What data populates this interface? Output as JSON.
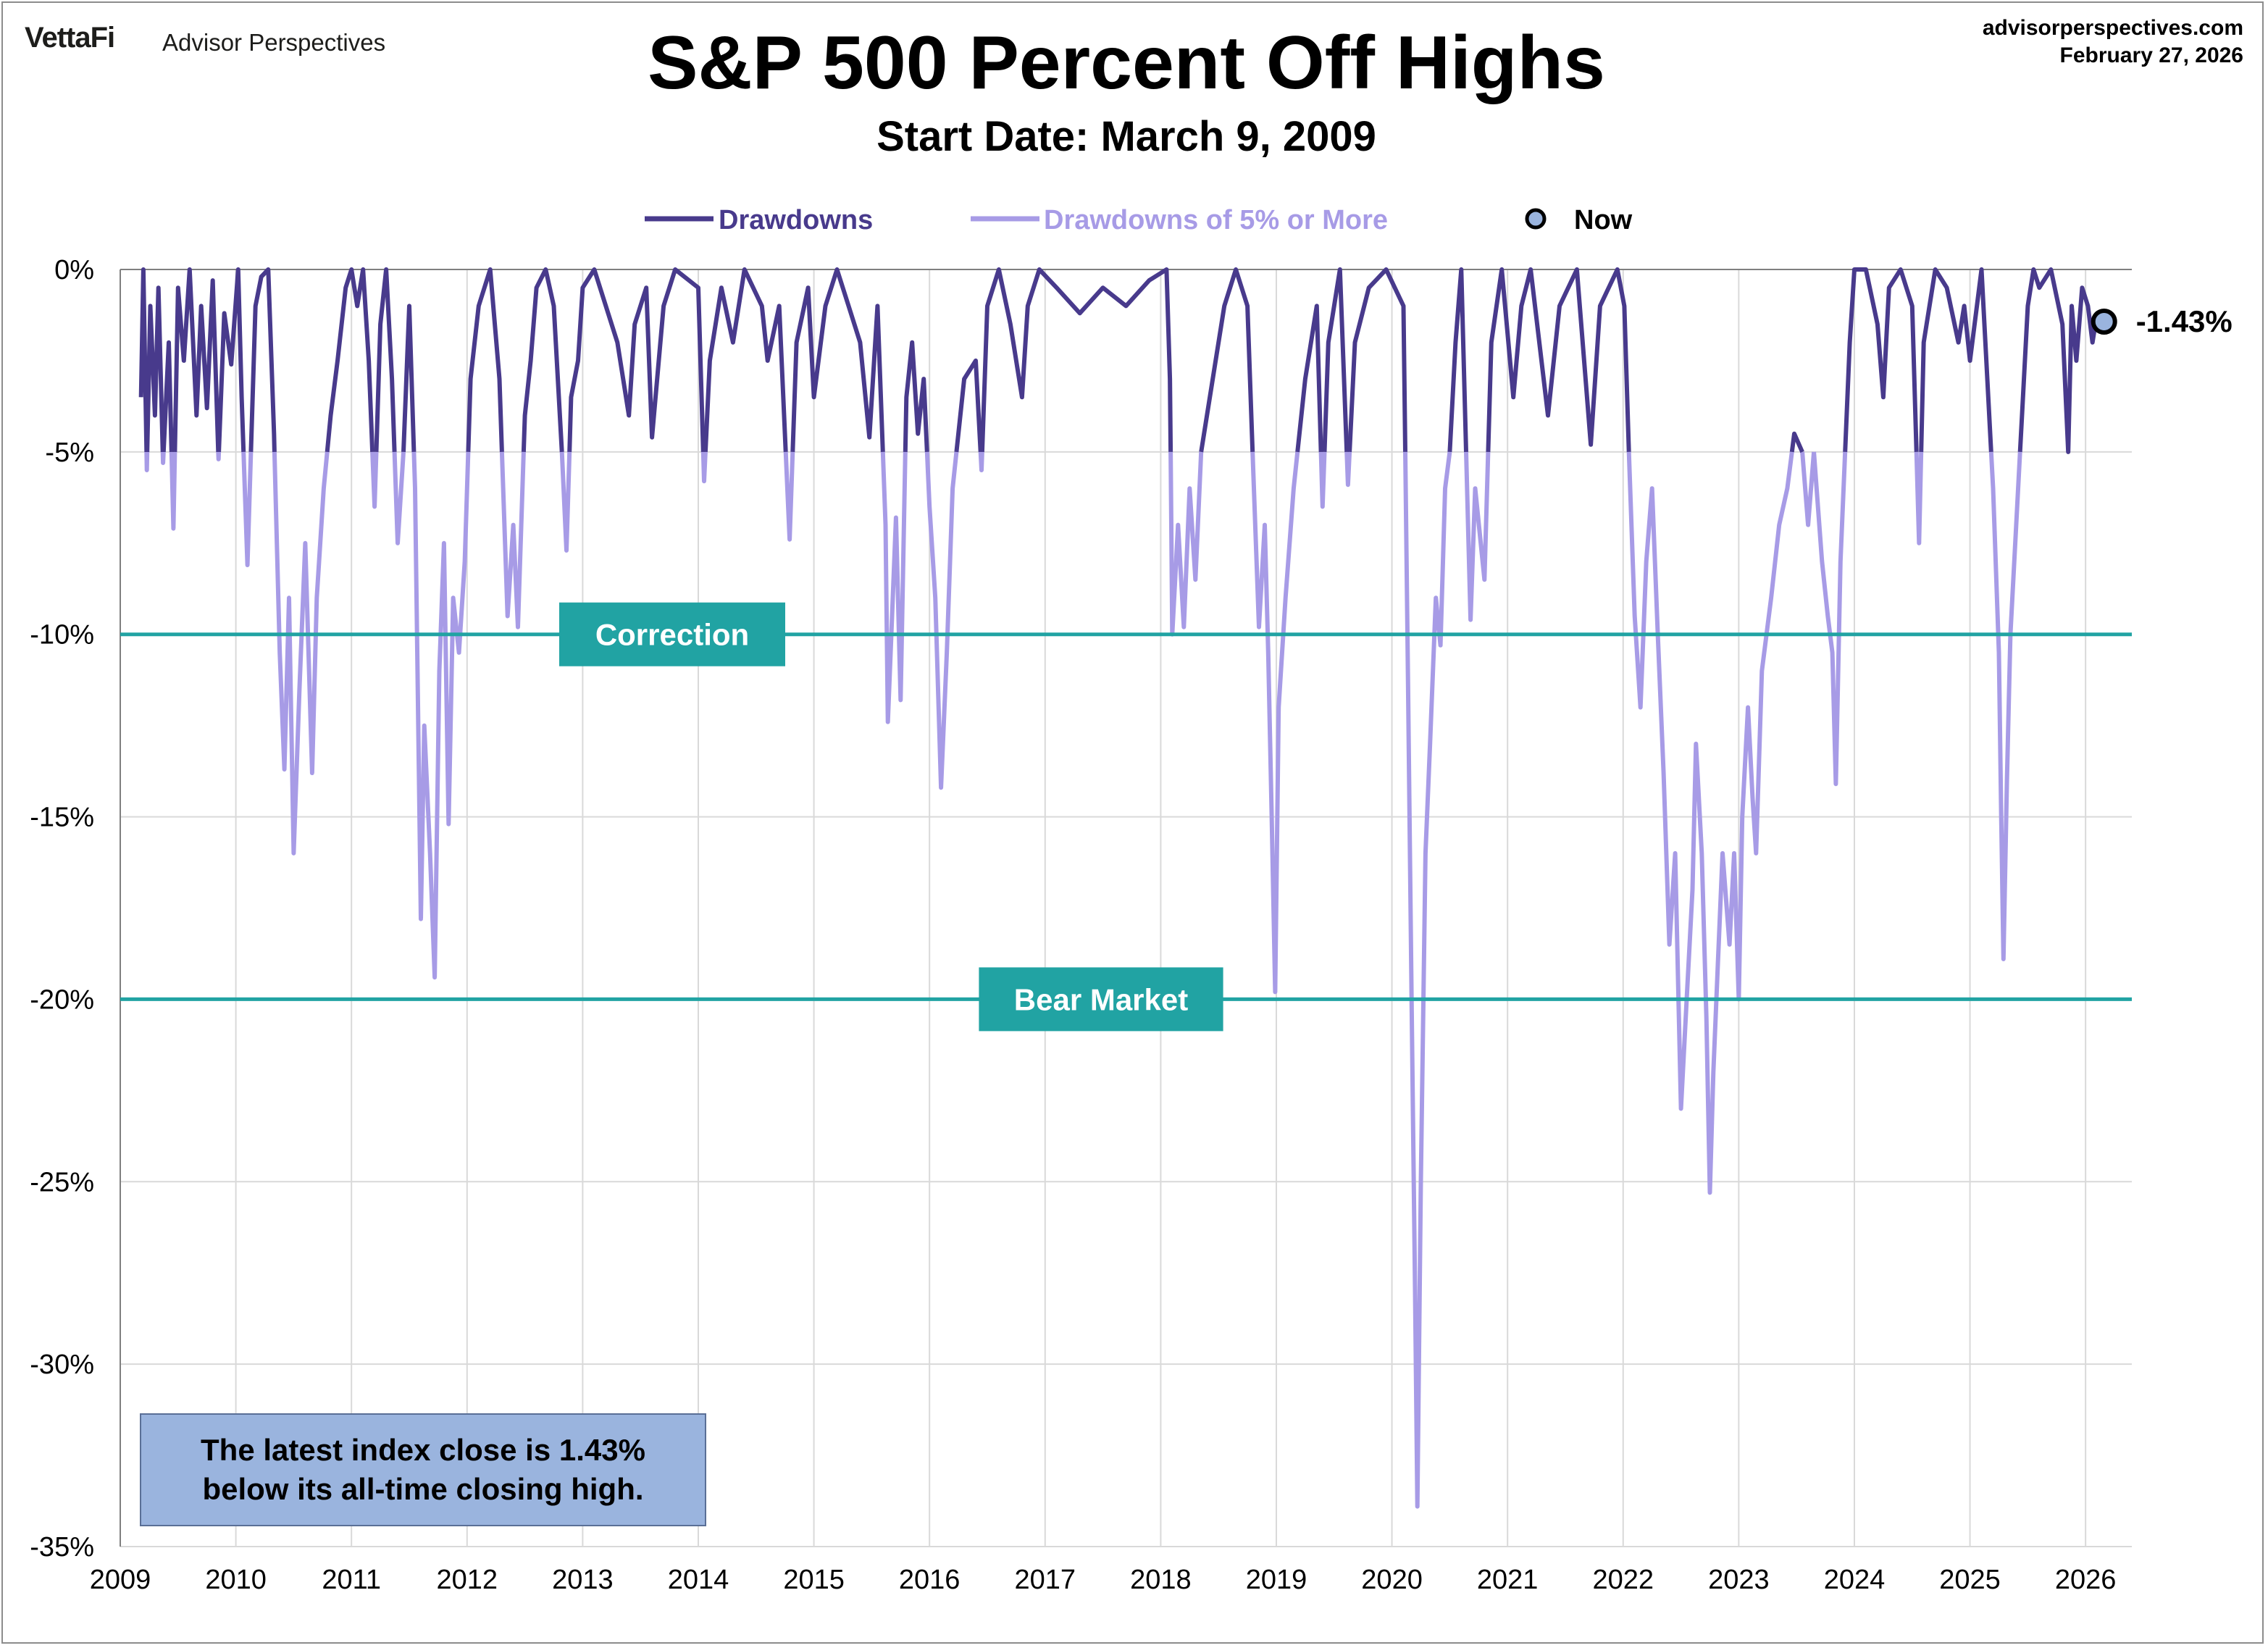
{
  "header": {
    "logo": "VettaFi",
    "logo_sub": "Advisor Perspectives",
    "source_url": "advisorperspectives.com",
    "source_date": "February 27, 2026"
  },
  "note": {
    "line1": "The latest index close is 1.43%",
    "line2": "below its all-time closing high."
  },
  "colors": {
    "drawdown": "#483a8c",
    "drawdown_5pct": "#a79be6",
    "reference": "#21a3a3",
    "grid": "#d9d9d9"
  },
  "chart_data": {
    "type": "line",
    "title": "S&P 500 Percent Off Highs",
    "subtitle": "Start Date: March 9, 2009",
    "xlabel": "",
    "ylabel": "",
    "xlim": [
      2009,
      2026.4
    ],
    "ylim": [
      -35,
      0
    ],
    "grid": true,
    "legend_position": "top",
    "x_ticks": [
      "2009",
      "2010",
      "2011",
      "2012",
      "2013",
      "2014",
      "2015",
      "2016",
      "2017",
      "2018",
      "2019",
      "2020",
      "2021",
      "2022",
      "2023",
      "2024",
      "2025",
      "2026"
    ],
    "y_ticks": [
      "0%",
      "-5%",
      "-10%",
      "-15%",
      "-20%",
      "-25%",
      "-30%",
      "-35%"
    ],
    "legend": [
      {
        "name": "Drawdowns",
        "color": "#483a8c",
        "kind": "line"
      },
      {
        "name": "Drawdowns of 5% or More",
        "color": "#a79be6",
        "kind": "line"
      },
      {
        "name": "Now",
        "color": "#9ab4de",
        "kind": "marker"
      }
    ],
    "reference_lines": [
      {
        "label": "Correction",
        "y": -10
      },
      {
        "label": "Bear Market",
        "y": -20
      }
    ],
    "threshold": -5,
    "series": [
      {
        "name": "Drawdowns",
        "points": [
          [
            2009.18,
            -3.5
          ],
          [
            2009.2,
            0
          ],
          [
            2009.23,
            -5.5
          ],
          [
            2009.26,
            -1
          ],
          [
            2009.3,
            -4
          ],
          [
            2009.33,
            -0.5
          ],
          [
            2009.37,
            -5.3
          ],
          [
            2009.42,
            -2
          ],
          [
            2009.46,
            -7.1
          ],
          [
            2009.5,
            -0.5
          ],
          [
            2009.55,
            -2.5
          ],
          [
            2009.6,
            0
          ],
          [
            2009.66,
            -4
          ],
          [
            2009.7,
            -1
          ],
          [
            2009.75,
            -3.8
          ],
          [
            2009.8,
            -0.3
          ],
          [
            2009.85,
            -5.2
          ],
          [
            2009.9,
            -1.2
          ],
          [
            2009.96,
            -2.6
          ],
          [
            2010.02,
            0
          ],
          [
            2010.05,
            -3.5
          ],
          [
            2010.1,
            -8.1
          ],
          [
            2010.17,
            -1
          ],
          [
            2010.22,
            -0.2
          ],
          [
            2010.28,
            0
          ],
          [
            2010.33,
            -4.5
          ],
          [
            2010.38,
            -10.5
          ],
          [
            2010.42,
            -13.7
          ],
          [
            2010.46,
            -9
          ],
          [
            2010.5,
            -16
          ],
          [
            2010.55,
            -11.5
          ],
          [
            2010.6,
            -7.5
          ],
          [
            2010.66,
            -13.8
          ],
          [
            2010.7,
            -9
          ],
          [
            2010.76,
            -6
          ],
          [
            2010.82,
            -4
          ],
          [
            2010.88,
            -2.5
          ],
          [
            2010.95,
            -0.5
          ],
          [
            2011.0,
            0
          ],
          [
            2011.05,
            -1
          ],
          [
            2011.1,
            0
          ],
          [
            2011.15,
            -2.5
          ],
          [
            2011.2,
            -6.5
          ],
          [
            2011.25,
            -1.5
          ],
          [
            2011.3,
            0
          ],
          [
            2011.35,
            -3
          ],
          [
            2011.4,
            -7.5
          ],
          [
            2011.45,
            -5
          ],
          [
            2011.5,
            -1
          ],
          [
            2011.55,
            -6
          ],
          [
            2011.6,
            -17.8
          ],
          [
            2011.63,
            -12.5
          ],
          [
            2011.68,
            -16
          ],
          [
            2011.72,
            -19.4
          ],
          [
            2011.76,
            -11
          ],
          [
            2011.8,
            -7.5
          ],
          [
            2011.84,
            -15.2
          ],
          [
            2011.88,
            -9
          ],
          [
            2011.93,
            -10.5
          ],
          [
            2011.98,
            -8
          ],
          [
            2012.03,
            -3
          ],
          [
            2012.1,
            -1
          ],
          [
            2012.2,
            0
          ],
          [
            2012.28,
            -3
          ],
          [
            2012.35,
            -9.5
          ],
          [
            2012.4,
            -7
          ],
          [
            2012.44,
            -9.8
          ],
          [
            2012.5,
            -4
          ],
          [
            2012.55,
            -2.5
          ],
          [
            2012.6,
            -0.5
          ],
          [
            2012.68,
            0
          ],
          [
            2012.75,
            -1
          ],
          [
            2012.82,
            -5
          ],
          [
            2012.86,
            -7.7
          ],
          [
            2012.9,
            -3.5
          ],
          [
            2012.96,
            -2.5
          ],
          [
            2013.0,
            -0.5
          ],
          [
            2013.1,
            0
          ],
          [
            2013.3,
            -2
          ],
          [
            2013.4,
            -4
          ],
          [
            2013.45,
            -1.5
          ],
          [
            2013.55,
            -0.5
          ],
          [
            2013.6,
            -4.6
          ],
          [
            2013.7,
            -1
          ],
          [
            2013.8,
            0
          ],
          [
            2014.0,
            -0.5
          ],
          [
            2014.05,
            -5.8
          ],
          [
            2014.1,
            -2.5
          ],
          [
            2014.2,
            -0.5
          ],
          [
            2014.3,
            -2
          ],
          [
            2014.4,
            0
          ],
          [
            2014.55,
            -1
          ],
          [
            2014.6,
            -2.5
          ],
          [
            2014.7,
            -1
          ],
          [
            2014.79,
            -7.4
          ],
          [
            2014.85,
            -2
          ],
          [
            2014.95,
            -0.5
          ],
          [
            2015.0,
            -3.5
          ],
          [
            2015.1,
            -1
          ],
          [
            2015.2,
            0
          ],
          [
            2015.3,
            -1
          ],
          [
            2015.4,
            -2
          ],
          [
            2015.48,
            -4.6
          ],
          [
            2015.55,
            -1
          ],
          [
            2015.62,
            -7
          ],
          [
            2015.64,
            -12.4
          ],
          [
            2015.67,
            -10
          ],
          [
            2015.71,
            -6.8
          ],
          [
            2015.75,
            -11.8
          ],
          [
            2015.8,
            -3.5
          ],
          [
            2015.85,
            -2
          ],
          [
            2015.9,
            -4.5
          ],
          [
            2015.95,
            -3
          ],
          [
            2016.0,
            -6.5
          ],
          [
            2016.05,
            -9
          ],
          [
            2016.1,
            -14.2
          ],
          [
            2016.15,
            -10.5
          ],
          [
            2016.2,
            -6
          ],
          [
            2016.3,
            -3
          ],
          [
            2016.4,
            -2.5
          ],
          [
            2016.45,
            -5.5
          ],
          [
            2016.5,
            -1
          ],
          [
            2016.6,
            0
          ],
          [
            2016.7,
            -1.5
          ],
          [
            2016.8,
            -3.5
          ],
          [
            2016.85,
            -1
          ],
          [
            2016.95,
            0
          ],
          [
            2017.1,
            -0.5
          ],
          [
            2017.3,
            -1.2
          ],
          [
            2017.5,
            -0.5
          ],
          [
            2017.7,
            -1
          ],
          [
            2017.9,
            -0.3
          ],
          [
            2018.05,
            0
          ],
          [
            2018.08,
            -3
          ],
          [
            2018.1,
            -10
          ],
          [
            2018.15,
            -7
          ],
          [
            2018.2,
            -9.8
          ],
          [
            2018.25,
            -6
          ],
          [
            2018.3,
            -8.5
          ],
          [
            2018.35,
            -5
          ],
          [
            2018.45,
            -3
          ],
          [
            2018.55,
            -1
          ],
          [
            2018.65,
            0
          ],
          [
            2018.75,
            -1
          ],
          [
            2018.8,
            -5.5
          ],
          [
            2018.85,
            -9.8
          ],
          [
            2018.9,
            -7
          ],
          [
            2018.93,
            -10.5
          ],
          [
            2018.96,
            -15
          ],
          [
            2018.99,
            -19.8
          ],
          [
            2019.02,
            -12
          ],
          [
            2019.08,
            -9
          ],
          [
            2019.15,
            -6
          ],
          [
            2019.25,
            -3
          ],
          [
            2019.35,
            -1
          ],
          [
            2019.4,
            -6.5
          ],
          [
            2019.45,
            -2
          ],
          [
            2019.55,
            0
          ],
          [
            2019.62,
            -5.9
          ],
          [
            2019.68,
            -2
          ],
          [
            2019.8,
            -0.5
          ],
          [
            2019.95,
            0
          ],
          [
            2020.1,
            -1
          ],
          [
            2020.14,
            -11.5
          ],
          [
            2020.17,
            -20
          ],
          [
            2020.2,
            -28
          ],
          [
            2020.22,
            -33.9
          ],
          [
            2020.25,
            -25
          ],
          [
            2020.29,
            -16
          ],
          [
            2020.33,
            -13
          ],
          [
            2020.38,
            -9
          ],
          [
            2020.42,
            -10.3
          ],
          [
            2020.46,
            -6
          ],
          [
            2020.5,
            -5
          ],
          [
            2020.55,
            -2
          ],
          [
            2020.6,
            0
          ],
          [
            2020.68,
            -9.6
          ],
          [
            2020.72,
            -6
          ],
          [
            2020.8,
            -8.5
          ],
          [
            2020.86,
            -2
          ],
          [
            2020.95,
            0
          ],
          [
            2021.05,
            -3.5
          ],
          [
            2021.12,
            -1
          ],
          [
            2021.2,
            0
          ],
          [
            2021.35,
            -4
          ],
          [
            2021.45,
            -1
          ],
          [
            2021.6,
            0
          ],
          [
            2021.72,
            -4.8
          ],
          [
            2021.8,
            -1
          ],
          [
            2021.95,
            0
          ],
          [
            2022.01,
            -1
          ],
          [
            2022.05,
            -5
          ],
          [
            2022.1,
            -9.5
          ],
          [
            2022.15,
            -12
          ],
          [
            2022.2,
            -8
          ],
          [
            2022.25,
            -6
          ],
          [
            2022.3,
            -10
          ],
          [
            2022.35,
            -13.8
          ],
          [
            2022.4,
            -18.5
          ],
          [
            2022.45,
            -16
          ],
          [
            2022.5,
            -23
          ],
          [
            2022.55,
            -20
          ],
          [
            2022.6,
            -17
          ],
          [
            2022.63,
            -13
          ],
          [
            2022.68,
            -16
          ],
          [
            2022.72,
            -20.5
          ],
          [
            2022.75,
            -25.3
          ],
          [
            2022.78,
            -22
          ],
          [
            2022.82,
            -19
          ],
          [
            2022.86,
            -16
          ],
          [
            2022.92,
            -18.5
          ],
          [
            2022.96,
            -16
          ],
          [
            2023.0,
            -20
          ],
          [
            2023.03,
            -15
          ],
          [
            2023.08,
            -12
          ],
          [
            2023.12,
            -14.5
          ],
          [
            2023.15,
            -16
          ],
          [
            2023.2,
            -11
          ],
          [
            2023.28,
            -9
          ],
          [
            2023.35,
            -7
          ],
          [
            2023.42,
            -6
          ],
          [
            2023.48,
            -4.5
          ],
          [
            2023.55,
            -5
          ],
          [
            2023.6,
            -7
          ],
          [
            2023.65,
            -5
          ],
          [
            2023.72,
            -8
          ],
          [
            2023.77,
            -9.5
          ],
          [
            2023.81,
            -10.5
          ],
          [
            2023.84,
            -14.1
          ],
          [
            2023.88,
            -8
          ],
          [
            2023.92,
            -5
          ],
          [
            2023.96,
            -2
          ],
          [
            2024.0,
            0
          ],
          [
            2024.1,
            0
          ],
          [
            2024.2,
            -1.5
          ],
          [
            2024.25,
            -3.5
          ],
          [
            2024.3,
            -0.5
          ],
          [
            2024.4,
            0
          ],
          [
            2024.5,
            -1
          ],
          [
            2024.56,
            -7.5
          ],
          [
            2024.6,
            -2
          ],
          [
            2024.7,
            0
          ],
          [
            2024.8,
            -0.5
          ],
          [
            2024.9,
            -2
          ],
          [
            2024.95,
            -1
          ],
          [
            2025.0,
            -2.5
          ],
          [
            2025.1,
            0
          ],
          [
            2025.15,
            -3
          ],
          [
            2025.2,
            -6
          ],
          [
            2025.25,
            -10.5
          ],
          [
            2025.27,
            -15
          ],
          [
            2025.29,
            -18.9
          ],
          [
            2025.32,
            -14
          ],
          [
            2025.35,
            -10
          ],
          [
            2025.4,
            -7
          ],
          [
            2025.45,
            -4
          ],
          [
            2025.5,
            -1
          ],
          [
            2025.55,
            0
          ],
          [
            2025.6,
            -0.5
          ],
          [
            2025.7,
            0
          ],
          [
            2025.8,
            -1.5
          ],
          [
            2025.85,
            -5
          ],
          [
            2025.88,
            -1
          ],
          [
            2025.92,
            -2.5
          ],
          [
            2025.97,
            -0.5
          ],
          [
            2026.02,
            -1
          ],
          [
            2026.06,
            -2
          ],
          [
            2026.1,
            -1.2
          ],
          [
            2026.16,
            -1.43
          ]
        ]
      }
    ],
    "now_point": {
      "x": 2026.16,
      "y": -1.43,
      "label": "-1.43%"
    }
  }
}
